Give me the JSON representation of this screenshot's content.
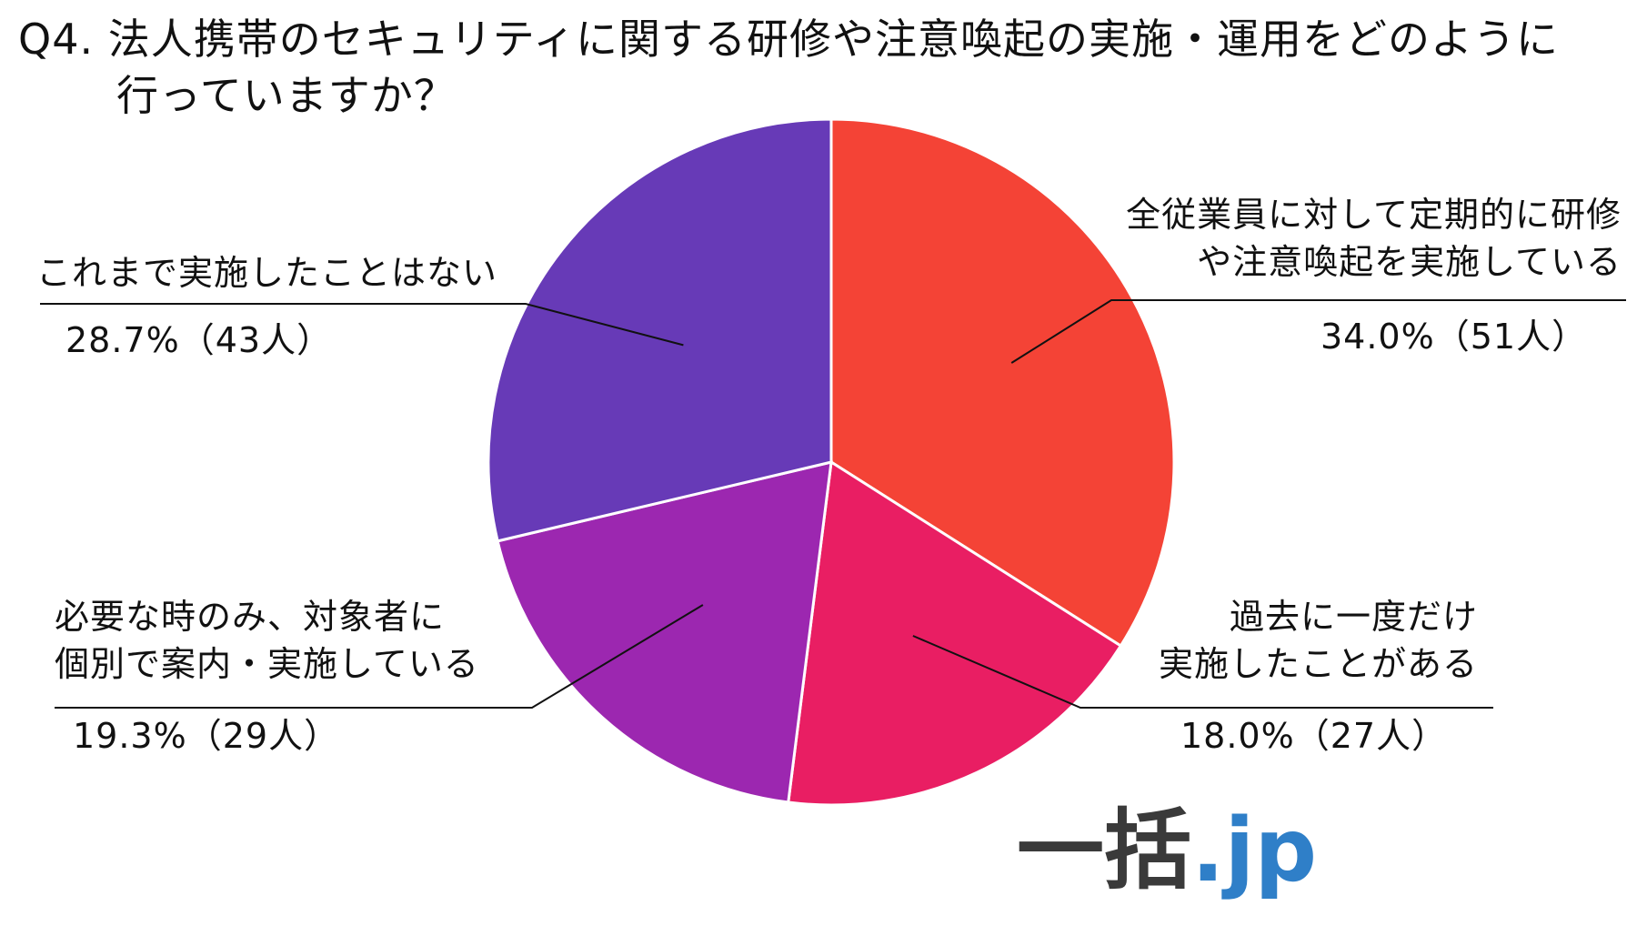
{
  "title": {
    "line1": "Q4. 法人携帯のセキュリティに関する研修や注意喚起の実施・運用をどのように",
    "line2": "行っていますか？"
  },
  "chart_data": {
    "type": "pie",
    "start_angle_deg": 0,
    "direction": "clockwise",
    "slices": [
      {
        "label_lines": [
          "全従業員に対して定期的に研修",
          "や注意喚起を実施している"
        ],
        "value": 34.0,
        "count": 51,
        "value_text": "34.0%（51人）",
        "color": "#f44336"
      },
      {
        "label_lines": [
          "過去に一度だけ",
          "実施したことがある"
        ],
        "value": 18.0,
        "count": 27,
        "value_text": "18.0%（27人）",
        "color": "#e91e63"
      },
      {
        "label_lines": [
          "必要な時のみ、対象者に",
          "個別で案内・実施している"
        ],
        "value": 19.3,
        "count": 29,
        "value_text": "19.3%（29人）",
        "color": "#9c27b0"
      },
      {
        "label_lines": [
          "これまで実施したことはない"
        ],
        "value": 28.7,
        "count": 43,
        "value_text": "28.7%（43人）",
        "color": "#673ab7"
      }
    ]
  },
  "logo": {
    "kanji": "一括",
    "suffix": ".jp"
  }
}
